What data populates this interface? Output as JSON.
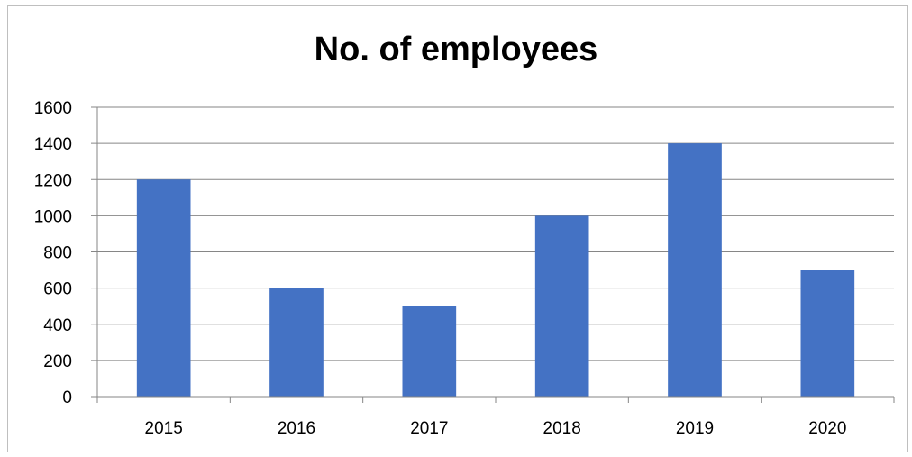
{
  "chart_data": {
    "type": "bar",
    "title": "No. of employees",
    "categories": [
      "2015",
      "2016",
      "2017",
      "2018",
      "2019",
      "2020"
    ],
    "values": [
      1200,
      600,
      500,
      1000,
      1400,
      700
    ],
    "ylim": [
      0,
      1600
    ],
    "y_ticks": [
      "0",
      "200",
      "400",
      "600",
      "800",
      "1000",
      "1200",
      "1400",
      "1600"
    ],
    "xlabel": "",
    "ylabel": "",
    "grid": true,
    "legend": "none",
    "bar_color": "#4472c4",
    "grid_color": "#868686"
  }
}
